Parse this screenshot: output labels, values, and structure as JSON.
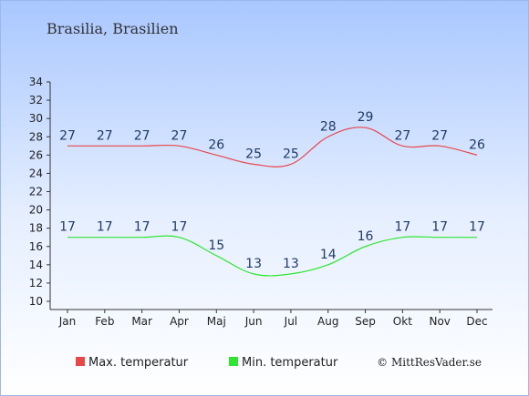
{
  "chart_data": {
    "type": "line",
    "title": "Brasilia, Brasilien",
    "categories": [
      "Jan",
      "Feb",
      "Mar",
      "Apr",
      "Maj",
      "Jun",
      "Jul",
      "Aug",
      "Sep",
      "Okt",
      "Nov",
      "Dec"
    ],
    "series": [
      {
        "name": "Max. temperatur",
        "color": "#e8474a",
        "values": [
          27,
          27,
          27,
          27,
          26,
          25,
          25,
          28,
          29,
          27,
          27,
          26
        ]
      },
      {
        "name": "Min. temperatur",
        "color": "#2ee62e",
        "values": [
          17,
          17,
          17,
          17,
          15,
          13,
          13,
          14,
          16,
          17,
          17,
          17
        ]
      }
    ],
    "ylim": [
      10,
      34
    ],
    "yticks": [
      10,
      12,
      14,
      16,
      18,
      20,
      22,
      24,
      26,
      28,
      30,
      32,
      34
    ],
    "grid": false,
    "legend_placement": "bottom-left"
  },
  "credit": "© MittResVader.se",
  "colors": {
    "background_top": "#a9c7ff",
    "background_bottom": "#ffffff",
    "border": "#9db8e8"
  }
}
